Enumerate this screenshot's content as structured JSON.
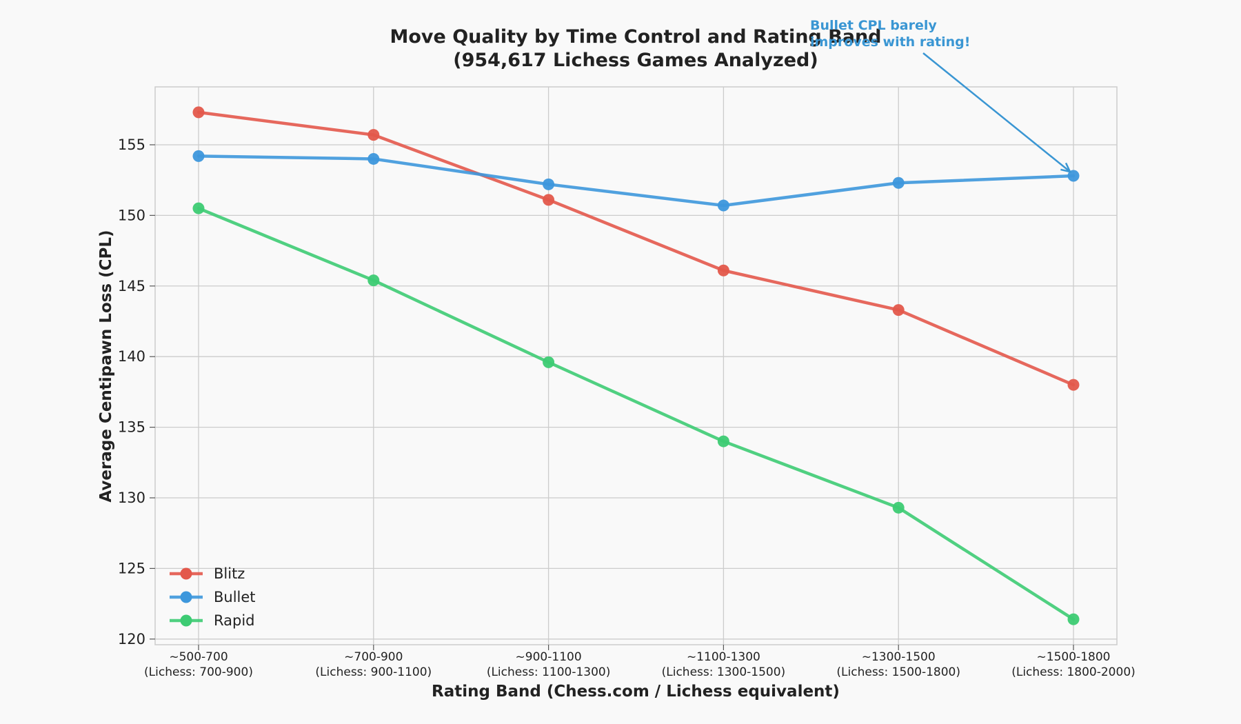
{
  "chart_data": {
    "type": "line",
    "title": "Move Quality by Time Control and Rating Band",
    "subtitle": "(954,617 Lichess Games Analyzed)",
    "xlabel": "Rating Band (Chess.com / Lichess equivalent)",
    "ylabel": "Average Centipawn Loss (CPL)",
    "categories": [
      [
        "~500-700",
        "(Lichess: 700-900)"
      ],
      [
        "~700-900",
        "(Lichess: 900-1100)"
      ],
      [
        "~900-1100",
        "(Lichess: 1100-1300)"
      ],
      [
        "~1100-1300",
        "(Lichess: 1300-1500)"
      ],
      [
        "~1300-1500",
        "(Lichess: 1500-1800)"
      ],
      [
        "~1500-1800",
        "(Lichess: 1800-2000)"
      ]
    ],
    "ylim": [
      119.6,
      159.1
    ],
    "yticks": [
      120,
      125,
      130,
      135,
      140,
      145,
      150,
      155
    ],
    "grid": true,
    "legend_position": "lower-left",
    "series": [
      {
        "name": "Blitz",
        "color": "#e3584b",
        "values": [
          157.3,
          155.7,
          151.1,
          146.1,
          143.3,
          138.0
        ]
      },
      {
        "name": "Bullet",
        "color": "#3d97dc",
        "values": [
          154.2,
          154.0,
          152.2,
          150.7,
          152.3,
          152.8
        ]
      },
      {
        "name": "Rapid",
        "color": "#3dcb73",
        "values": [
          150.5,
          145.4,
          139.6,
          134.0,
          129.3,
          121.4
        ]
      }
    ],
    "annotations": [
      {
        "lines": [
          "Bullet CPL barely",
          "improves with rating!"
        ],
        "series": "Bullet",
        "category_index": 5,
        "color": "#3a96d3"
      }
    ]
  }
}
